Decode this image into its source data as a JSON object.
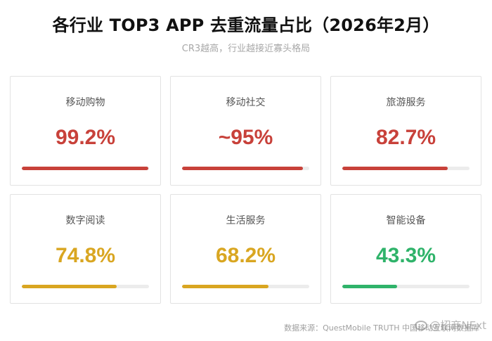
{
  "header": {
    "title": "各行业 TOP3 APP 去重流量占比（2026年2月）",
    "subtitle": "CR3越高，行业越接近寡头格局"
  },
  "chart_data": {
    "type": "bar",
    "title": "各行业 TOP3 APP 去重流量占比（2026年2月）",
    "subtitle": "CR3越高，行业越接近寡头格局",
    "categories": [
      "移动购物",
      "移动社交",
      "旅游服务",
      "数字阅读",
      "生活服务",
      "智能设备"
    ],
    "values": [
      99.2,
      95,
      82.7,
      74.8,
      68.2,
      43.3
    ],
    "value_labels": [
      "99.2%",
      "~95%",
      "82.7%",
      "74.8%",
      "68.2%",
      "43.3%"
    ],
    "ylim": [
      0,
      100
    ],
    "colors": [
      "#c8413a",
      "#c8413a",
      "#c8413a",
      "#d9a621",
      "#d9a621",
      "#2fb36a"
    ]
  },
  "footer": {
    "source": "数据来源：QuestMobile TRUTH 中国移动互联网数据库",
    "watermark": "@招商NExt"
  }
}
